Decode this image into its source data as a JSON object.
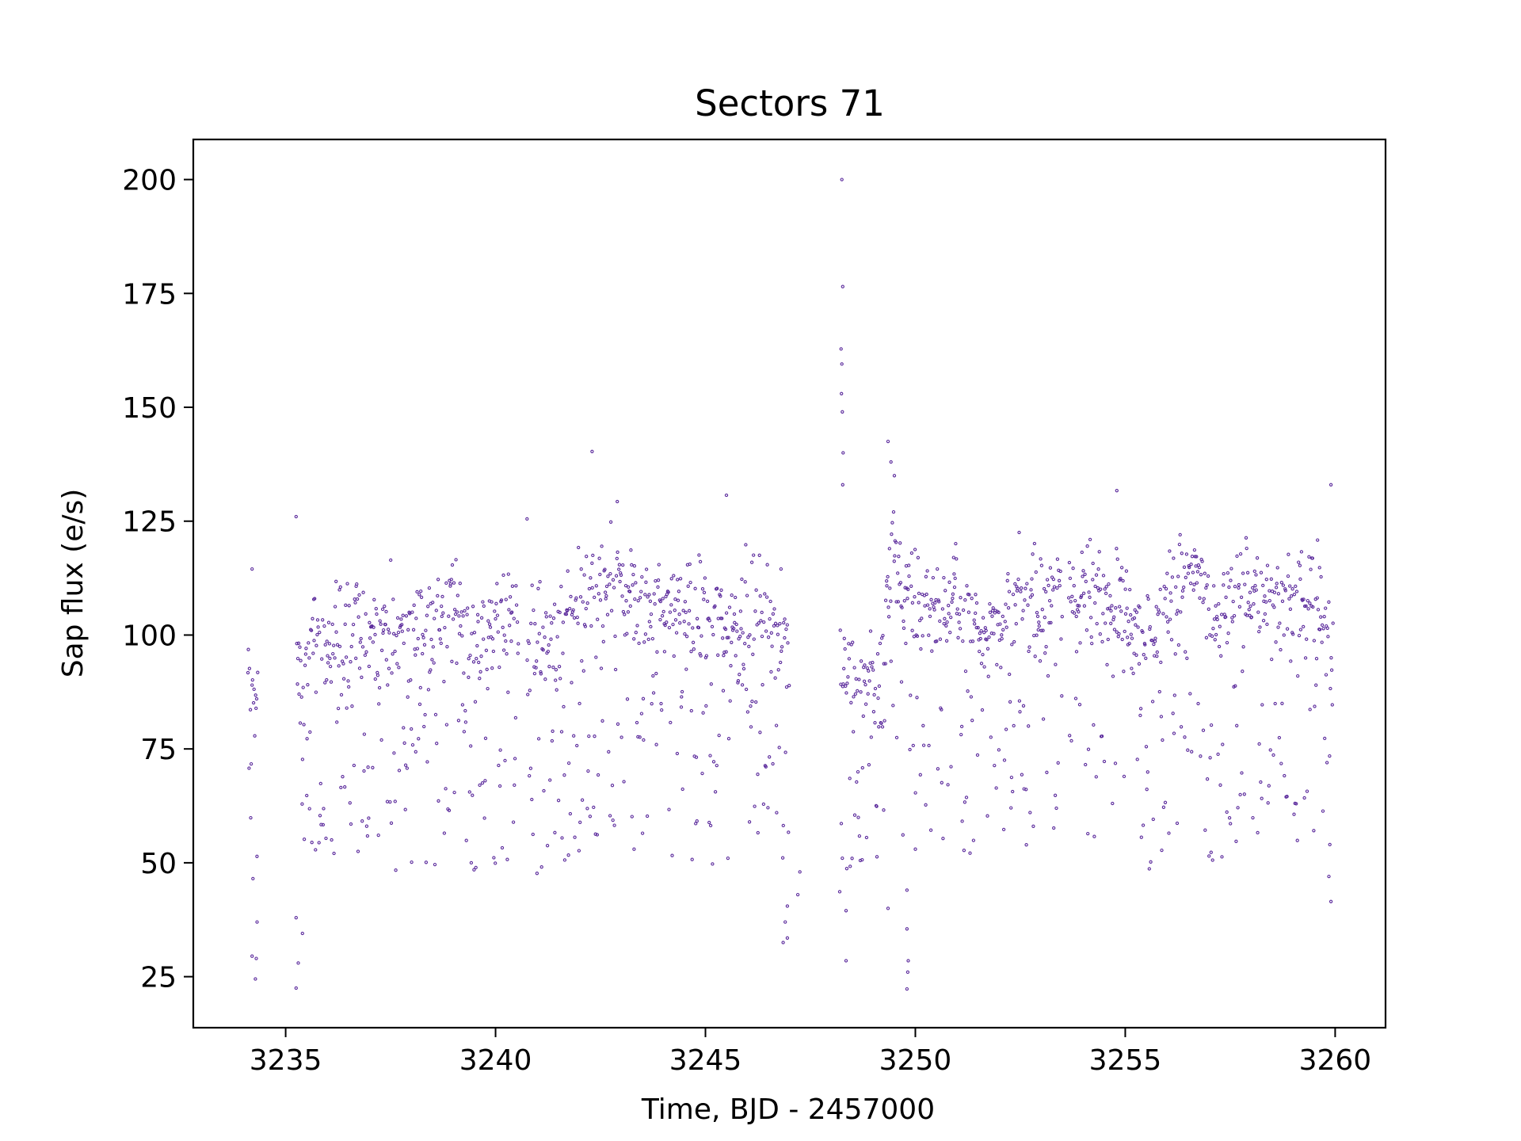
{
  "chart_data": {
    "type": "scatter",
    "title": "Sectors 71",
    "xlabel": "Time, BJD - 2457000",
    "ylabel": "Sap flux (e/s)",
    "xlim": [
      3232.8,
      3261.2
    ],
    "ylim": [
      13.8,
      208.8
    ],
    "xticks": [
      3235,
      3240,
      3245,
      3250,
      3255,
      3260
    ],
    "yticks": [
      25,
      50,
      75,
      100,
      125,
      150,
      175,
      200
    ],
    "grid": false,
    "marker": "hollow-circle",
    "color": "#5b2a9c",
    "series": [
      {
        "segments": [
          [
            3234.1,
            3234.35
          ],
          [
            3235.25,
            3240.55
          ],
          [
            3240.75,
            3247.0
          ],
          [
            3248.2,
            3253.5
          ],
          [
            3253.65,
            3259.95
          ]
        ],
        "trend": [
          [
            3234.2,
            86
          ],
          [
            3235.3,
            92
          ],
          [
            3235.6,
            98
          ],
          [
            3236.5,
            101
          ],
          [
            3237.2,
            103
          ],
          [
            3237.8,
            98
          ],
          [
            3238.6,
            103
          ],
          [
            3239.2,
            106
          ],
          [
            3239.6,
            98
          ],
          [
            3240.0,
            103
          ],
          [
            3240.5,
            105
          ],
          [
            3240.8,
            98
          ],
          [
            3241.2,
            99
          ],
          [
            3241.8,
            105
          ],
          [
            3242.6,
            109
          ],
          [
            3243.0,
            112
          ],
          [
            3243.6,
            107
          ],
          [
            3244.4,
            105
          ],
          [
            3245.0,
            104
          ],
          [
            3245.8,
            102
          ],
          [
            3246.4,
            109
          ],
          [
            3246.9,
            98
          ],
          [
            3248.2,
            97
          ],
          [
            3248.7,
            92
          ],
          [
            3249.1,
            86
          ],
          [
            3249.45,
            120
          ],
          [
            3249.7,
            108
          ],
          [
            3250.5,
            106
          ],
          [
            3251.2,
            106
          ],
          [
            3251.8,
            100
          ],
          [
            3252.5,
            107
          ],
          [
            3253.4,
            110
          ],
          [
            3253.7,
            108
          ],
          [
            3254.6,
            110
          ],
          [
            3255.2,
            103
          ],
          [
            3255.6,
            101
          ],
          [
            3256.2,
            110
          ],
          [
            3256.7,
            114
          ],
          [
            3257.1,
            102
          ],
          [
            3257.5,
            107
          ],
          [
            3258.0,
            112
          ],
          [
            3258.6,
            106
          ],
          [
            3259.1,
            108
          ],
          [
            3259.6,
            110
          ],
          [
            3259.95,
            95
          ]
        ],
        "outliers": [
          [
            3248.25,
            200.0
          ],
          [
            3248.27,
            176.5
          ],
          [
            3248.23,
            162.8
          ],
          [
            3248.25,
            159.5
          ],
          [
            3248.24,
            153.0
          ],
          [
            3248.26,
            149.0
          ],
          [
            3248.28,
            140.0
          ],
          [
            3248.27,
            133.0
          ],
          [
            3249.35,
            142.5
          ],
          [
            3249.42,
            138.0
          ],
          [
            3249.5,
            135.0
          ],
          [
            3242.3,
            140.3
          ],
          [
            3242.9,
            129.3
          ],
          [
            3245.5,
            130.7
          ],
          [
            3254.8,
            131.7
          ],
          [
            3259.9,
            133.0
          ],
          [
            3235.25,
            126.0
          ],
          [
            3240.75,
            125.5
          ],
          [
            3234.2,
            114.5
          ],
          [
            3235.25,
            22.5
          ],
          [
            3235.3,
            28.0
          ],
          [
            3235.4,
            34.5
          ],
          [
            3234.28,
            24.5
          ],
          [
            3234.2,
            29.5
          ],
          [
            3234.3,
            29.0
          ],
          [
            3234.32,
            37.0
          ],
          [
            3249.8,
            22.3
          ],
          [
            3249.82,
            26.0
          ],
          [
            3249.83,
            28.5
          ],
          [
            3249.8,
            35.5
          ],
          [
            3249.8,
            44.0
          ],
          [
            3248.35,
            28.5
          ],
          [
            3248.35,
            39.5
          ],
          [
            3246.85,
            32.5
          ],
          [
            3246.95,
            33.5
          ],
          [
            3246.9,
            37.0
          ],
          [
            3246.95,
            40.5
          ],
          [
            3247.2,
            43.0
          ],
          [
            3247.25,
            48.0
          ],
          [
            3259.9,
            41.5
          ],
          [
            3259.85,
            47.0
          ],
          [
            3249.35,
            40.0
          ],
          [
            3250.0,
            53.0
          ],
          [
            3243.3,
            53.0
          ]
        ]
      }
    ]
  }
}
